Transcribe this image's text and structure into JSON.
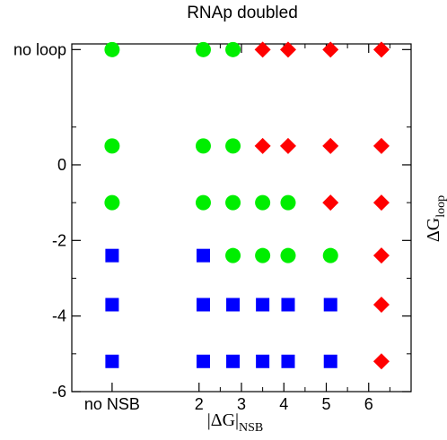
{
  "chart_data": {
    "type": "scatter",
    "title": "RNAp doubled",
    "xlabel": {
      "main": "|ΔG|",
      "sub": "NSB"
    },
    "ylabel": {
      "main": "ΔG",
      "sub": "loop"
    },
    "xlim": [
      -1.0,
      7.0
    ],
    "ylim": [
      -6,
      3.2
    ],
    "x_ticks": [
      {
        "value": -0.05,
        "label": "no NSB"
      },
      {
        "value": 2,
        "label": "2"
      },
      {
        "value": 3,
        "label": "3"
      },
      {
        "value": 4,
        "label": "4"
      },
      {
        "value": 5,
        "label": "5"
      },
      {
        "value": 6,
        "label": "6"
      }
    ],
    "y_ticks": [
      {
        "value": 0,
        "label": "0"
      },
      {
        "value": -2,
        "label": "-2"
      },
      {
        "value": -4,
        "label": "-4"
      },
      {
        "value": -6,
        "label": "-6"
      }
    ],
    "y_special_ticks": [
      {
        "value": 3.05,
        "label": "no loop"
      }
    ],
    "marker_colors": {
      "circle": "#00ee00",
      "diamond": "#ff0000",
      "square": "#0000ff"
    },
    "series": [
      {
        "marker": "circle",
        "points": [
          {
            "x": -0.05,
            "y": 3.05
          },
          {
            "x": 2.1,
            "y": 3.05
          },
          {
            "x": 2.8,
            "y": 3.05
          },
          {
            "x": -0.05,
            "y": 0.5
          },
          {
            "x": 2.1,
            "y": 0.5
          },
          {
            "x": 2.8,
            "y": 0.5
          },
          {
            "x": -0.05,
            "y": -1.0
          },
          {
            "x": 2.1,
            "y": -1.0
          },
          {
            "x": 2.8,
            "y": -1.0
          },
          {
            "x": 3.5,
            "y": -1.0
          },
          {
            "x": 4.1,
            "y": -1.0
          },
          {
            "x": 2.8,
            "y": -2.4
          },
          {
            "x": 3.5,
            "y": -2.4
          },
          {
            "x": 4.1,
            "y": -2.4
          },
          {
            "x": 5.1,
            "y": -2.4
          }
        ]
      },
      {
        "marker": "diamond",
        "points": [
          {
            "x": 3.5,
            "y": 3.05
          },
          {
            "x": 4.1,
            "y": 3.05
          },
          {
            "x": 5.1,
            "y": 3.05
          },
          {
            "x": 6.3,
            "y": 3.05
          },
          {
            "x": 3.5,
            "y": 0.5
          },
          {
            "x": 4.1,
            "y": 0.5
          },
          {
            "x": 5.1,
            "y": 0.5
          },
          {
            "x": 6.3,
            "y": 0.5
          },
          {
            "x": 5.1,
            "y": -1.0
          },
          {
            "x": 6.3,
            "y": -1.0
          },
          {
            "x": 6.3,
            "y": -2.4
          },
          {
            "x": 6.3,
            "y": -3.7
          },
          {
            "x": 6.3,
            "y": -5.2
          }
        ]
      },
      {
        "marker": "square",
        "points": [
          {
            "x": -0.05,
            "y": -2.4
          },
          {
            "x": 2.1,
            "y": -2.4
          },
          {
            "x": -0.05,
            "y": -3.7
          },
          {
            "x": 2.1,
            "y": -3.7
          },
          {
            "x": 2.8,
            "y": -3.7
          },
          {
            "x": 3.5,
            "y": -3.7
          },
          {
            "x": 4.1,
            "y": -3.7
          },
          {
            "x": 5.1,
            "y": -3.7
          },
          {
            "x": -0.05,
            "y": -5.2
          },
          {
            "x": 2.1,
            "y": -5.2
          },
          {
            "x": 2.8,
            "y": -5.2
          },
          {
            "x": 3.5,
            "y": -5.2
          },
          {
            "x": 4.1,
            "y": -5.2
          },
          {
            "x": 5.1,
            "y": -5.2
          }
        ]
      }
    ]
  }
}
